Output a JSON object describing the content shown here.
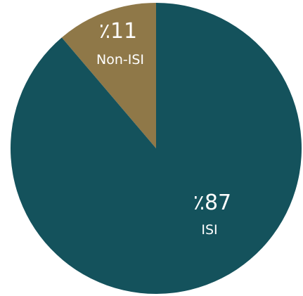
{
  "chart_data": {
    "type": "pie",
    "title": "",
    "legend": "none",
    "start_angle": "12 o'clock",
    "slices": [
      {
        "label": "Non-ISI",
        "value": 11,
        "display": "٪11",
        "color": "#8f7848"
      },
      {
        "label": "ISI",
        "value": 87,
        "display": "٪87",
        "color": "#14525c"
      }
    ]
  }
}
